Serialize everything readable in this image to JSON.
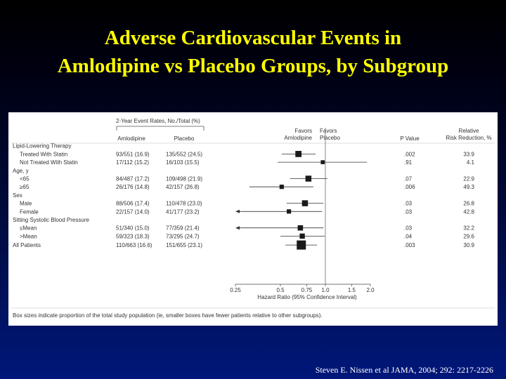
{
  "slide": {
    "title_line1": "Adverse Cardiovascular Events in",
    "title_line2": "Amlodipine vs Placebo Groups, by Subgroup",
    "citation": "Steven E. Nissen et al JAMA,  2004; 292:  2217-2226",
    "title_color": "#ffff00",
    "accent_color": "#1a1a1a"
  },
  "table": {
    "rates_header": "2-Year Event Rates, No./Total (%)",
    "col_amlodipine": "Amlodipine",
    "col_placebo": "Placebo",
    "favors_amlodipine_1": "Favors",
    "favors_amlodipine_2": "Amlodipine",
    "favors_placebo_1": "Favors",
    "favors_placebo_2": "Placebo",
    "col_pvalue": "P Value",
    "col_rrr_1": "Relative",
    "col_rrr_2": "Risk Reduction, %",
    "footnote": "Box sizes indicate proportion of the total study population (ie, smaller boxes have fewer patients relative to other subgroups)."
  },
  "chart_data": {
    "type": "forest",
    "xlabel": "Hazard Ratio (95% Confidence Interval)",
    "x_ticks": [
      "0.25",
      "0.5",
      "0.75",
      "1.0",
      "1.5",
      "2.0"
    ],
    "xlim": [
      0.25,
      2.0
    ],
    "reference_line": 1.0,
    "rows": [
      {
        "kind": "header",
        "label": "Lipid-Lowering Therapy"
      },
      {
        "kind": "data",
        "label": "Treated With Statin",
        "amlodipine": "93/551 (16.9)",
        "placebo": "135/552 (24.5)",
        "hr": 0.66,
        "ci_low": 0.51,
        "ci_high": 0.86,
        "weight": 0.33,
        "arrow_left": false,
        "p": ".002",
        "rrr": "33.9"
      },
      {
        "kind": "data",
        "label": "Not Treated With Statin",
        "amlodipine": "17/112 (15.2)",
        "placebo": "16/103 (15.5)",
        "hr": 0.96,
        "ci_low": 0.48,
        "ci_high": 1.9,
        "weight": 0.07,
        "arrow_left": false,
        "p": ".91",
        "rrr": "4.1"
      },
      {
        "kind": "header",
        "label": "Age, y"
      },
      {
        "kind": "data",
        "label": "<65",
        "amlodipine": "84/487 (17.2)",
        "placebo": "109/498 (21.9)",
        "hr": 0.77,
        "ci_low": 0.58,
        "ci_high": 1.03,
        "weight": 0.3,
        "arrow_left": false,
        "p": ".07",
        "rrr": "22.9"
      },
      {
        "kind": "data",
        "label": "≥65",
        "amlodipine": "26/176 (14.8)",
        "placebo": "42/157 (26.8)",
        "hr": 0.51,
        "ci_low": 0.31,
        "ci_high": 0.83,
        "weight": 0.1,
        "arrow_left": false,
        "p": ".006",
        "rrr": "49.3"
      },
      {
        "kind": "header",
        "label": "Sex"
      },
      {
        "kind": "data",
        "label": "Male",
        "amlodipine": "88/506 (17.4)",
        "placebo": "110/478 (23.0)",
        "hr": 0.73,
        "ci_low": 0.55,
        "ci_high": 0.97,
        "weight": 0.3,
        "arrow_left": false,
        "p": ".03",
        "rrr": "26.8"
      },
      {
        "kind": "data",
        "label": "Female",
        "amlodipine": "22/157 (14.0)",
        "placebo": "41/177 (23.2)",
        "hr": 0.57,
        "ci_low": 0.25,
        "ci_high": 0.95,
        "weight": 0.1,
        "arrow_left": true,
        "p": ".03",
        "rrr": "42.8"
      },
      {
        "kind": "header",
        "label": "Sitting Systolic Blood Pressure"
      },
      {
        "kind": "data",
        "label": "≤Mean",
        "amlodipine": "51/340 (15.0)",
        "placebo": "77/359 (21.4)",
        "hr": 0.68,
        "ci_low": 0.25,
        "ci_high": 0.97,
        "weight": 0.21,
        "arrow_left": true,
        "p": ".03",
        "rrr": "32.2"
      },
      {
        "kind": "data",
        "label": ">Mean",
        "amlodipine": "59/323 (18.3)",
        "placebo": "73/295 (24.7)",
        "hr": 0.7,
        "ci_low": 0.5,
        "ci_high": 0.99,
        "weight": 0.19,
        "arrow_left": false,
        "p": ".04",
        "rrr": "29.6"
      },
      {
        "kind": "data",
        "label": "All Patients",
        "amlodipine": "110/663 (16.6)",
        "placebo": "151/655 (23.1)",
        "hr": 0.69,
        "ci_low": 0.54,
        "ci_high": 0.88,
        "weight": 1.0,
        "arrow_left": false,
        "p": ".003",
        "rrr": "30.9"
      }
    ]
  }
}
